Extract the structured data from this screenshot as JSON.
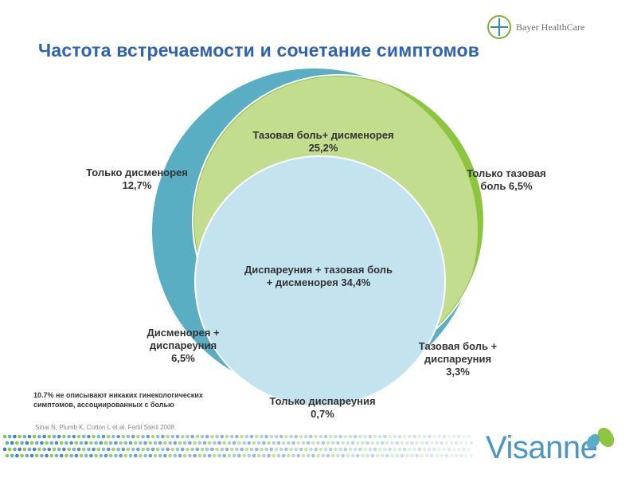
{
  "header": {
    "logo_text": "Bayer HealthCare",
    "title": "Частота встречаемости и сочетание симптомов"
  },
  "diagram": {
    "labels": {
      "dysmenorrhea_only": "Только дисменорея\n12,7%",
      "pelvic_dysmenorrhea": "Тазовая боль+ дисменорея\n25,2%",
      "pelvic_only": "Только тазовая\nболь 6,5%",
      "all_three": "Диспареуния + тазовая боль\n+ дисменорея 34,4%",
      "dysmenorrhea_dyspareunia": "Дисменорея +\nдиспареуния\n6,5%",
      "pelvic_dyspareunia": "Тазовая боль +\nдиспареуния\n3,3%",
      "dyspareunia_only": "Только диспареуния\n0,7%"
    },
    "colors": {
      "dysmenorrhea": "#5aaec4",
      "pelvic_pain": "#8cc63f",
      "dyspareunia": "#c3e3ef"
    }
  },
  "footer": {
    "note": "10.7% не описывают никаких гинекологических\nсимптомов, ассоциированных с болью",
    "reference": "Sinai N, Plumb K, Cotton L et al. Fertil Steril 2008.",
    "brand": "Visanne"
  }
}
